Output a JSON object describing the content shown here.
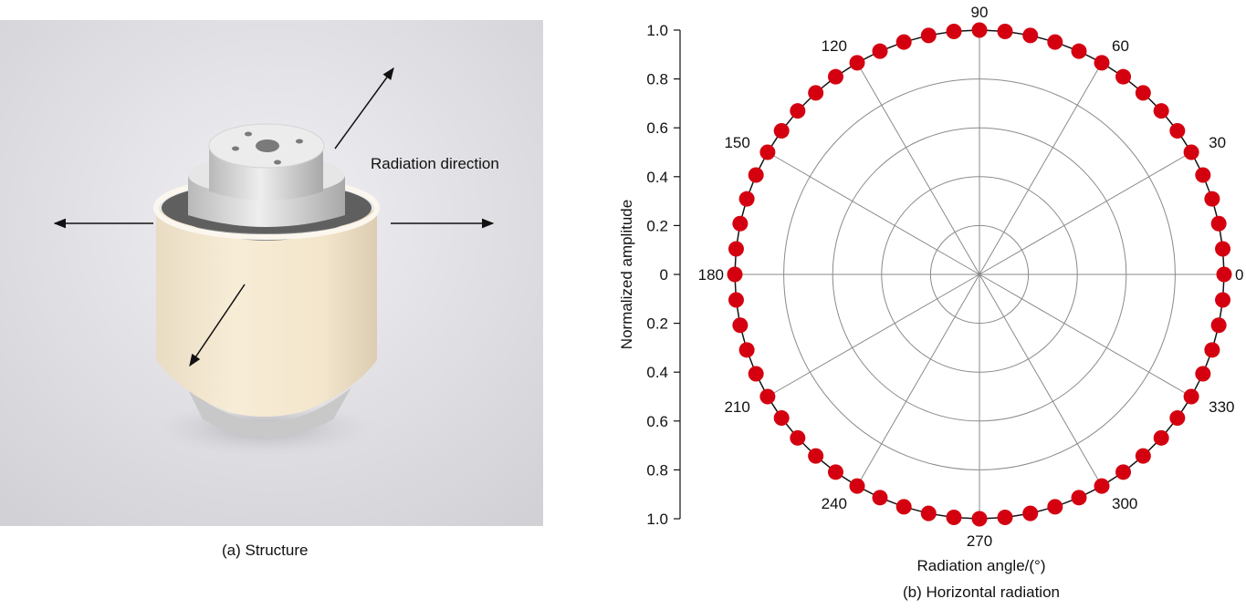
{
  "figure": {
    "panel_a": {
      "caption": "(a) Structure",
      "annotation": "Radiation direction"
    },
    "panel_b": {
      "caption": "(b) Horizontal radiation"
    }
  },
  "chart_data": {
    "type": "polar-scatter",
    "title": "",
    "xlabel": "Radiation angle/(°)",
    "ylabel": "Normalized amplitude",
    "radial_ticks": [
      "1.0",
      "0.8",
      "0.6",
      "0.4",
      "0.2",
      "0",
      "0.2",
      "0.4",
      "0.6",
      "0.8",
      "1.0"
    ],
    "radial_range": [
      0,
      1.0
    ],
    "radial_grid": [
      0.2,
      0.4,
      0.6,
      0.8,
      1.0
    ],
    "angle_ticks": [
      0,
      30,
      60,
      90,
      120,
      150,
      180,
      210,
      240,
      270,
      300,
      330
    ],
    "angle_tick_labels": [
      "0",
      "30",
      "60",
      "90",
      "120",
      "150",
      "180",
      "210",
      "240",
      "270",
      "300",
      "330"
    ],
    "grid": true,
    "series": [
      {
        "color": "#d40010",
        "angles_deg": [
          0,
          6,
          12,
          18,
          24,
          30,
          36,
          42,
          48,
          54,
          60,
          66,
          72,
          78,
          84,
          90,
          96,
          102,
          108,
          114,
          120,
          126,
          132,
          138,
          144,
          150,
          156,
          162,
          168,
          174,
          180,
          186,
          192,
          198,
          204,
          210,
          216,
          222,
          228,
          234,
          240,
          246,
          252,
          258,
          264,
          270,
          276,
          282,
          288,
          294,
          300,
          306,
          312,
          318,
          324,
          330,
          336,
          342,
          348,
          354
        ],
        "amplitude": [
          1.0,
          1.0,
          1.0,
          1.0,
          1.0,
          1.0,
          1.0,
          1.0,
          1.0,
          1.0,
          1.0,
          1.0,
          1.0,
          1.0,
          1.0,
          1.0,
          1.0,
          1.0,
          1.0,
          1.0,
          1.0,
          1.0,
          1.0,
          1.0,
          1.0,
          1.0,
          1.0,
          1.0,
          1.0,
          1.0,
          1.0,
          1.0,
          1.0,
          1.0,
          1.0,
          1.0,
          1.0,
          1.0,
          1.0,
          1.0,
          1.0,
          1.0,
          1.0,
          1.0,
          1.0,
          1.0,
          1.0,
          1.0,
          1.0,
          1.0,
          1.0,
          1.0,
          1.0,
          1.0,
          1.0,
          1.0,
          1.0,
          1.0,
          1.0,
          1.0
        ]
      }
    ]
  }
}
